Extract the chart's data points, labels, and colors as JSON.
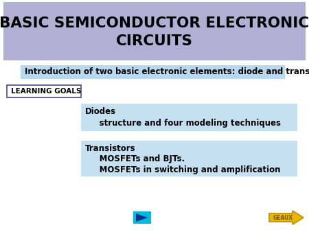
{
  "bg_color": "#ffffff",
  "title_bg_color": "#b3aed4",
  "title_text": "BASIC SEMICONDUCTOR ELECTRONIC\nCIRCUITS",
  "title_fontsize": 15.5,
  "title_color": "#000000",
  "intro_bg_color": "#b8d8ef",
  "intro_text": "Introduction of two basic electronic elements: diode and transistor",
  "intro_fontsize": 8.5,
  "learning_goals_text": "LEARNING GOALS",
  "learning_goals_fontsize": 7.5,
  "learning_goals_border_color": "#5555aa",
  "diodes_bg_color": "#c5e0f0",
  "diodes_title": "Diodes",
  "diodes_sub": "     structure and four modeling techniques",
  "transistors_bg_color": "#c5e0f0",
  "transistors_title": "Transistors",
  "transistors_sub1": "     MOSFETs and BJTs.",
  "transistors_sub2": "     MOSFETs in switching and amplification",
  "content_fontsize": 8.5,
  "play_btn_color": "#00bbdd",
  "play_triangle_color": "#003388",
  "geaux_bg_color": "#e8b800",
  "geaux_border_color": "#c09000",
  "geaux_text": "GEAUX",
  "geaux_text_color": "#7a5500",
  "geaux_fontsize": 5.5
}
